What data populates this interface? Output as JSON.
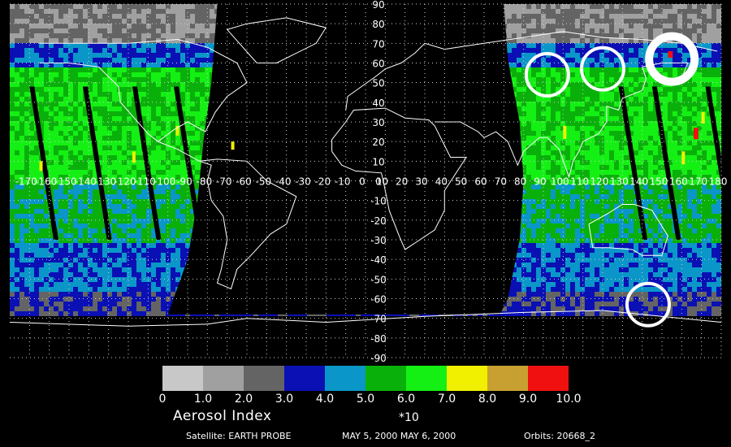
{
  "product": {
    "legend_title": "Aerosol Index",
    "multiplier": "*10",
    "satellite": "Satellite: EARTH PROBE",
    "dates": "MAY 5, 2000 MAY 6, 2000",
    "orbits": "Orbits: 20668_2"
  },
  "colorbar": {
    "colors": [
      "#c8c8c8",
      "#a0a0a0",
      "#646464",
      "#0a10b4",
      "#0a96c8",
      "#0ab00a",
      "#14f014",
      "#f0f000",
      "#c8a032",
      "#f01010"
    ],
    "labels": [
      "0",
      "1.0",
      "2.0",
      "3.0",
      "4.0",
      "5.0",
      "6.0",
      "7.0",
      "8.0",
      "9.0",
      "10.0"
    ]
  },
  "map": {
    "projection": "equirectangular",
    "lon_range": [
      -180,
      180
    ],
    "lat_range": [
      -90,
      90
    ],
    "lon_ticks": [
      "-170",
      "-160",
      "-150",
      "-140",
      "-130",
      "-120",
      "-110",
      "-100",
      "-90",
      "-80",
      "-70",
      "-60",
      "-50",
      "-40",
      "-30",
      "-20",
      "-10",
      "0",
      "10",
      "20",
      "30",
      "40",
      "50",
      "60",
      "70",
      "80",
      "90",
      "100",
      "110",
      "120",
      "130",
      "140",
      "150",
      "160",
      "170",
      "180"
    ],
    "lat_ticks": [
      "90",
      "80",
      "70",
      "60",
      "50",
      "40",
      "30",
      "20",
      "10",
      "0",
      "-10",
      "-20",
      "-30",
      "-40",
      "-50",
      "-60",
      "-70",
      "-80",
      "-90"
    ],
    "grid": "dotted",
    "gap_color": "#000000",
    "coastline_color": "#ffffff",
    "highlight_circles": [
      {
        "lon": 92,
        "lat": 54,
        "label": ""
      },
      {
        "lon": 120,
        "lat": 57,
        "label": ""
      },
      {
        "lon": 155,
        "lat": 62,
        "label": ""
      },
      {
        "lon": 143,
        "lat": -63,
        "label": ""
      }
    ]
  }
}
